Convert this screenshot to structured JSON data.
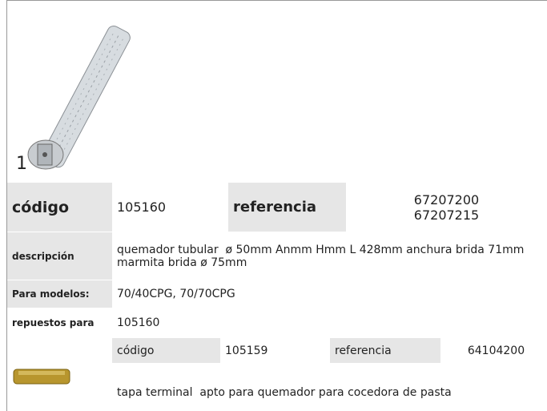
{
  "item_number": "1",
  "main": {
    "codigo_label": "código",
    "codigo": "105160",
    "referencia_label": "referencia",
    "referencias": [
      "67207200",
      "67207215"
    ]
  },
  "descripcion_label": "descripción",
  "descripcion": "quemador tubular  ø 50mm Anmm Hmm L 428mm anchura brida 71mm marmita brida ø 75mm",
  "modelos_label": "Para modelos:",
  "modelos": "70/40CPG, 70/70CPG",
  "repuestos_label": "repuestos para",
  "repuestos": "105160",
  "accessory": {
    "codigo_label": "código",
    "codigo": "105159",
    "referencia_label": "referencia",
    "referencia": "64104200",
    "descripcion": "tapa terminal  apto para quemador para cocedora de pasta"
  }
}
